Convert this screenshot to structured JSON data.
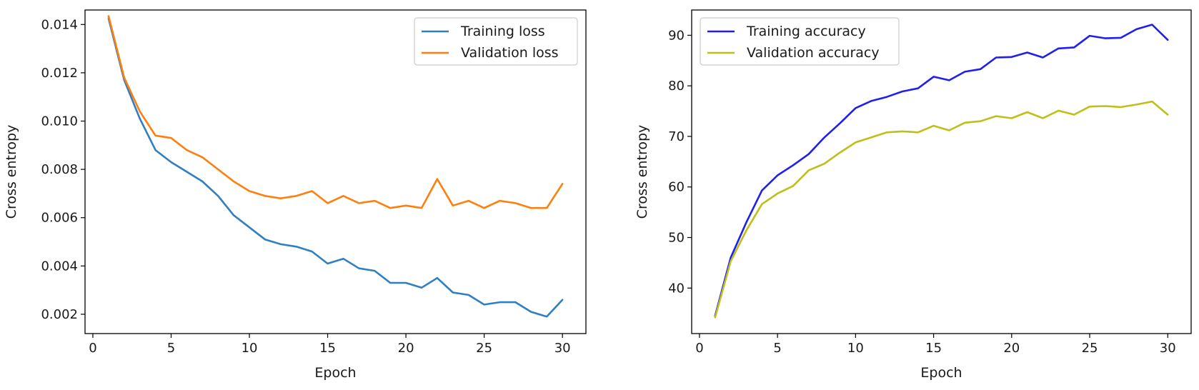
{
  "chart_data": [
    {
      "type": "line",
      "xlabel": "Epoch",
      "ylabel": "Cross entropy",
      "xlim": [
        -0.5,
        31.5
      ],
      "ylim": [
        0.0012,
        0.0146
      ],
      "xticks": [
        0,
        5,
        10,
        15,
        20,
        25,
        30
      ],
      "yticks": [
        0.002,
        0.004,
        0.006,
        0.008,
        0.01,
        0.012,
        0.014
      ],
      "ytick_labels": [
        "0.002",
        "0.004",
        "0.006",
        "0.008",
        "0.010",
        "0.012",
        "0.014"
      ],
      "grid": false,
      "legend_position": "top-right",
      "x": [
        1,
        2,
        3,
        4,
        5,
        6,
        7,
        8,
        9,
        10,
        11,
        12,
        13,
        14,
        15,
        16,
        17,
        18,
        19,
        20,
        21,
        22,
        23,
        24,
        25,
        26,
        27,
        28,
        29,
        30
      ],
      "series": [
        {
          "name": "Training loss",
          "color": "#2f7fc1",
          "values": [
            0.01425,
            0.0117,
            0.0101,
            0.0088,
            0.0083,
            0.0079,
            0.0075,
            0.0069,
            0.0061,
            0.0056,
            0.0051,
            0.0049,
            0.0048,
            0.0046,
            0.0041,
            0.0043,
            0.0039,
            0.0038,
            0.0033,
            0.0033,
            0.0031,
            0.0035,
            0.0029,
            0.0028,
            0.0024,
            0.0025,
            0.0025,
            0.0021,
            0.0019,
            0.0026
          ]
        },
        {
          "name": "Validation loss",
          "color": "#ff7f0e",
          "values": [
            0.01435,
            0.0118,
            0.0104,
            0.0094,
            0.0093,
            0.0088,
            0.0085,
            0.008,
            0.0075,
            0.0071,
            0.0069,
            0.0068,
            0.0069,
            0.0071,
            0.0066,
            0.0069,
            0.0066,
            0.0067,
            0.0064,
            0.0065,
            0.0064,
            0.0076,
            0.0065,
            0.0067,
            0.0064,
            0.0067,
            0.0066,
            0.0064,
            0.0064,
            0.0074
          ]
        }
      ]
    },
    {
      "type": "line",
      "xlabel": "Epoch",
      "ylabel": "Cross entropy",
      "xlim": [
        -0.5,
        31.5
      ],
      "ylim": [
        31,
        95
      ],
      "xticks": [
        0,
        5,
        10,
        15,
        20,
        25,
        30
      ],
      "yticks": [
        40,
        50,
        60,
        70,
        80,
        90
      ],
      "ytick_labels": [
        "40",
        "50",
        "60",
        "70",
        "80",
        "90"
      ],
      "grid": false,
      "legend_position": "top-left",
      "x": [
        1,
        2,
        3,
        4,
        5,
        6,
        7,
        8,
        9,
        10,
        11,
        12,
        13,
        14,
        15,
        16,
        17,
        18,
        19,
        20,
        21,
        22,
        23,
        24,
        25,
        26,
        27,
        28,
        29,
        30
      ],
      "series": [
        {
          "name": "Training accuracy",
          "color": "#1f1ff0",
          "values": [
            34.5,
            46.0,
            53.0,
            59.3,
            62.3,
            64.3,
            66.5,
            69.8,
            72.6,
            75.6,
            77.0,
            77.8,
            78.9,
            79.5,
            81.8,
            81.1,
            82.8,
            83.3,
            85.6,
            85.7,
            86.6,
            85.6,
            87.4,
            87.6,
            89.9,
            89.4,
            89.5,
            91.2,
            92.1,
            89.1
          ]
        },
        {
          "name": "Validation accuracy",
          "color": "#bfbf1a",
          "values": [
            34.2,
            45.3,
            51.4,
            56.6,
            58.7,
            60.2,
            63.3,
            64.6,
            66.8,
            68.8,
            69.8,
            70.8,
            71.0,
            70.8,
            72.1,
            71.2,
            72.7,
            73.0,
            74.0,
            73.6,
            74.8,
            73.6,
            75.1,
            74.3,
            75.9,
            76.0,
            75.8,
            76.3,
            76.9,
            74.3
          ]
        }
      ]
    }
  ]
}
